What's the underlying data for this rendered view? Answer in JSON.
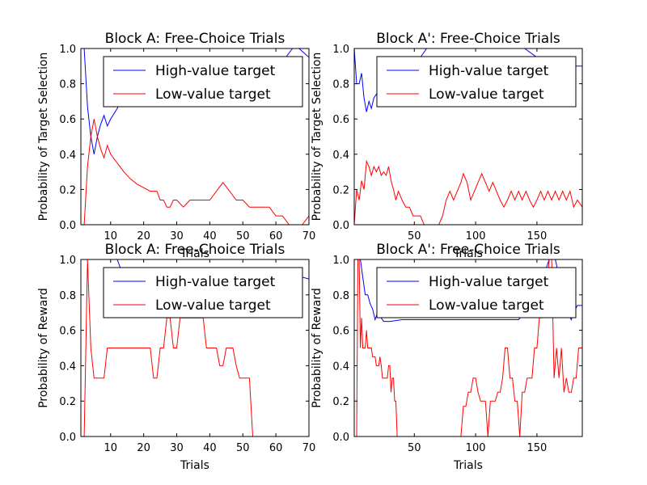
{
  "figure": {
    "background": "#ffffff",
    "series_colors": {
      "high": "#0000ff",
      "low": "#ff0000"
    }
  },
  "chart_data": [
    {
      "type": "line",
      "title": "Block A: Free-Choice Trials",
      "xlabel": "Trials",
      "ylabel": "Probability of Target Selection",
      "xlim": [
        1,
        70
      ],
      "ylim": [
        0,
        1
      ],
      "xticks": [
        10,
        20,
        30,
        40,
        50,
        60,
        70
      ],
      "yticks": [
        0.0,
        0.2,
        0.4,
        0.6,
        0.8,
        1.0
      ],
      "legend_position": "upper-right",
      "series": [
        {
          "name": "High-value target",
          "color": "#0000ff",
          "x": [
            1,
            2,
            3,
            4,
            5,
            6,
            7,
            8,
            9,
            10,
            11,
            12,
            13,
            14,
            15,
            20,
            25,
            30,
            40,
            50,
            60,
            63,
            65,
            67,
            70
          ],
          "y": [
            1.0,
            1.0,
            0.67,
            0.5,
            0.4,
            0.5,
            0.57,
            0.62,
            0.56,
            0.6,
            0.63,
            0.66,
            0.7,
            0.72,
            0.75,
            0.8,
            0.85,
            0.85,
            0.85,
            0.88,
            0.92,
            0.95,
            1.0,
            1.0,
            0.95
          ]
        },
        {
          "name": "Low-value target",
          "color": "#ff0000",
          "x": [
            1,
            2,
            3,
            4,
            5,
            6,
            7,
            8,
            9,
            10,
            12,
            14,
            16,
            18,
            20,
            22,
            24,
            25,
            26,
            27,
            28,
            29,
            30,
            32,
            34,
            40,
            42,
            44,
            46,
            48,
            50,
            52,
            54,
            58,
            60,
            62,
            64,
            66,
            68,
            70
          ],
          "y": [
            0.0,
            0.0,
            0.33,
            0.5,
            0.6,
            0.5,
            0.43,
            0.38,
            0.45,
            0.4,
            0.35,
            0.3,
            0.26,
            0.23,
            0.21,
            0.19,
            0.19,
            0.14,
            0.14,
            0.1,
            0.1,
            0.14,
            0.14,
            0.1,
            0.14,
            0.14,
            0.19,
            0.24,
            0.19,
            0.14,
            0.14,
            0.1,
            0.1,
            0.1,
            0.05,
            0.05,
            0.0,
            0.0,
            0.0,
            0.05
          ]
        }
      ]
    },
    {
      "type": "line",
      "title": "Block A': Free-Choice Trials",
      "xlabel": "Trials",
      "ylabel": "Probability of Target Selection",
      "xlim": [
        1,
        187
      ],
      "ylim": [
        0,
        1
      ],
      "xticks": [
        50,
        100,
        150
      ],
      "yticks": [
        0.0,
        0.2,
        0.4,
        0.6,
        0.8,
        1.0
      ],
      "legend_position": "upper-right",
      "series": [
        {
          "name": "High-value target",
          "color": "#0000ff",
          "x": [
            1,
            3,
            5,
            7,
            9,
            11,
            13,
            15,
            17,
            20,
            25,
            30,
            40,
            50,
            55,
            60,
            80,
            100,
            120,
            140,
            160,
            170,
            175,
            180,
            187
          ],
          "y": [
            1.0,
            0.8,
            0.8,
            0.86,
            0.72,
            0.64,
            0.7,
            0.66,
            0.72,
            0.75,
            0.8,
            0.82,
            0.85,
            0.9,
            0.95,
            1.0,
            1.0,
            1.0,
            1.0,
            1.0,
            0.9,
            0.84,
            0.9,
            0.9,
            0.9
          ]
        },
        {
          "name": "Low-value target",
          "color": "#ff0000",
          "x": [
            1,
            3,
            5,
            7,
            9,
            11,
            13,
            15,
            17,
            19,
            21,
            23,
            25,
            27,
            29,
            31,
            33,
            35,
            37,
            40,
            43,
            46,
            49,
            52,
            55,
            58,
            62,
            66,
            70,
            73,
            76,
            79,
            82,
            85,
            88,
            90,
            93,
            96,
            99,
            102,
            105,
            108,
            111,
            114,
            117,
            120,
            123,
            126,
            129,
            132,
            135,
            138,
            141,
            144,
            147,
            150,
            153,
            156,
            159,
            162,
            165,
            168,
            171,
            174,
            177,
            180,
            183,
            187
          ],
          "y": [
            0.0,
            0.2,
            0.14,
            0.25,
            0.2,
            0.36,
            0.33,
            0.28,
            0.33,
            0.3,
            0.33,
            0.28,
            0.3,
            0.28,
            0.33,
            0.25,
            0.2,
            0.14,
            0.19,
            0.14,
            0.1,
            0.1,
            0.05,
            0.05,
            0.05,
            0.0,
            0.0,
            0.0,
            0.0,
            0.05,
            0.14,
            0.19,
            0.14,
            0.19,
            0.24,
            0.29,
            0.24,
            0.14,
            0.19,
            0.24,
            0.29,
            0.24,
            0.19,
            0.24,
            0.19,
            0.14,
            0.1,
            0.14,
            0.19,
            0.14,
            0.19,
            0.14,
            0.19,
            0.14,
            0.1,
            0.14,
            0.19,
            0.14,
            0.19,
            0.14,
            0.19,
            0.14,
            0.19,
            0.14,
            0.19,
            0.1,
            0.14,
            0.1
          ]
        }
      ]
    },
    {
      "type": "line",
      "title": "Block A: Free-Choice Trials",
      "xlabel": "Trials",
      "ylabel": "Probability of Reward",
      "xlim": [
        1,
        70
      ],
      "ylim": [
        0,
        1
      ],
      "xticks": [
        10,
        20,
        30,
        40,
        50,
        60,
        70
      ],
      "yticks": [
        0.0,
        0.2,
        0.4,
        0.6,
        0.8,
        1.0
      ],
      "legend_position": "upper-right",
      "series": [
        {
          "name": "High-value target",
          "color": "#0000ff",
          "x": [
            1,
            3,
            5,
            8,
            12,
            13,
            15,
            20,
            30,
            40,
            50,
            60,
            65,
            66,
            67,
            68,
            70
          ],
          "y": [
            1.0,
            1.0,
            1.0,
            1.0,
            1.0,
            0.95,
            0.9,
            0.9,
            0.9,
            0.9,
            0.9,
            0.9,
            0.9,
            0.85,
            0.9,
            0.9,
            0.89
          ]
        },
        {
          "name": "Low-value target",
          "color": "#ff0000",
          "x": [
            1,
            2,
            3,
            4,
            5,
            6,
            7,
            8,
            9,
            10,
            12,
            14,
            16,
            18,
            20,
            22,
            23,
            24,
            25,
            26,
            27,
            28,
            29,
            30,
            31,
            32,
            33,
            34,
            35,
            36,
            37,
            38,
            39,
            40,
            41,
            42,
            43,
            44,
            45,
            46,
            47,
            48,
            49,
            50,
            51,
            52,
            53,
            54,
            56,
            58,
            60,
            62,
            64,
            66,
            68,
            70
          ],
          "y": [
            0.0,
            0.0,
            1.0,
            0.5,
            0.33,
            0.33,
            0.33,
            0.33,
            0.5,
            0.5,
            0.5,
            0.5,
            0.5,
            0.5,
            0.5,
            0.5,
            0.33,
            0.33,
            0.5,
            0.5,
            0.67,
            0.67,
            0.5,
            0.5,
            0.67,
            0.67,
            0.67,
            0.67,
            0.67,
            0.67,
            0.67,
            0.67,
            0.5,
            0.5,
            0.5,
            0.5,
            0.4,
            0.4,
            0.5,
            0.5,
            0.5,
            0.4,
            0.33,
            0.33,
            0.33,
            0.33,
            0.0,
            0.0,
            0.0,
            0.0,
            0.0,
            0.0,
            0.0,
            0.0,
            0.0,
            0.0
          ]
        }
      ]
    },
    {
      "type": "line",
      "title": "Block A': Free-Choice Trials",
      "xlabel": "Trials",
      "ylabel": "Probability of Reward",
      "xlim": [
        1,
        187
      ],
      "ylim": [
        0,
        1
      ],
      "xticks": [
        50,
        100,
        150
      ],
      "yticks": [
        0.0,
        0.2,
        0.4,
        0.6,
        0.8,
        1.0
      ],
      "legend_position": "upper-right",
      "series": [
        {
          "name": "High-value target",
          "color": "#0000ff",
          "x": [
            1,
            4,
            6,
            8,
            10,
            12,
            14,
            16,
            18,
            20,
            25,
            30,
            40,
            50,
            60,
            80,
            100,
            120,
            130,
            135,
            140,
            150,
            155,
            160,
            165,
            170,
            175,
            178,
            180,
            183,
            187
          ],
          "y": [
            1.0,
            1.0,
            1.0,
            0.9,
            0.8,
            0.8,
            0.75,
            0.72,
            0.66,
            0.7,
            0.65,
            0.65,
            0.66,
            0.66,
            0.66,
            0.66,
            0.66,
            0.66,
            0.66,
            0.66,
            0.7,
            0.8,
            0.9,
            1.0,
            1.0,
            0.85,
            0.7,
            0.66,
            0.7,
            0.74,
            0.74
          ]
        },
        {
          "name": "Low-value target",
          "color": "#ff0000",
          "x": [
            1,
            3,
            4,
            5,
            6,
            7,
            8,
            9,
            10,
            11,
            12,
            13,
            14,
            15,
            16,
            17,
            18,
            19,
            20,
            21,
            22,
            23,
            24,
            25,
            26,
            27,
            28,
            29,
            30,
            31,
            32,
            33,
            34,
            35,
            36,
            40,
            50,
            60,
            70,
            80,
            88,
            90,
            92,
            94,
            96,
            98,
            100,
            102,
            104,
            106,
            108,
            110,
            112,
            114,
            116,
            118,
            120,
            122,
            124,
            126,
            128,
            130,
            132,
            134,
            136,
            138,
            140,
            142,
            144,
            146,
            148,
            150,
            152,
            154,
            156,
            158,
            160,
            162,
            164,
            166,
            168,
            170,
            172,
            174,
            176,
            178,
            180,
            182,
            184,
            187
          ],
          "y": [
            0.0,
            0.0,
            1.0,
            1.0,
            0.5,
            0.67,
            0.5,
            0.5,
            0.5,
            0.6,
            0.5,
            0.5,
            0.5,
            0.5,
            0.45,
            0.45,
            0.45,
            0.4,
            0.4,
            0.4,
            0.45,
            0.4,
            0.33,
            0.33,
            0.33,
            0.33,
            0.33,
            0.4,
            0.4,
            0.25,
            0.33,
            0.33,
            0.2,
            0.2,
            0.0,
            0.0,
            0.0,
            0.0,
            0.0,
            0.0,
            0.0,
            0.17,
            0.17,
            0.25,
            0.25,
            0.33,
            0.33,
            0.25,
            0.2,
            0.2,
            0.2,
            0.0,
            0.2,
            0.2,
            0.2,
            0.25,
            0.25,
            0.33,
            0.5,
            0.5,
            0.33,
            0.33,
            0.2,
            0.2,
            0.0,
            0.25,
            0.25,
            0.33,
            0.33,
            0.33,
            0.5,
            0.5,
            0.67,
            0.67,
            0.8,
            0.8,
            1.0,
            1.0,
            0.33,
            0.5,
            0.33,
            0.5,
            0.25,
            0.33,
            0.25,
            0.25,
            0.33,
            0.33,
            0.5,
            0.5
          ]
        }
      ]
    }
  ]
}
